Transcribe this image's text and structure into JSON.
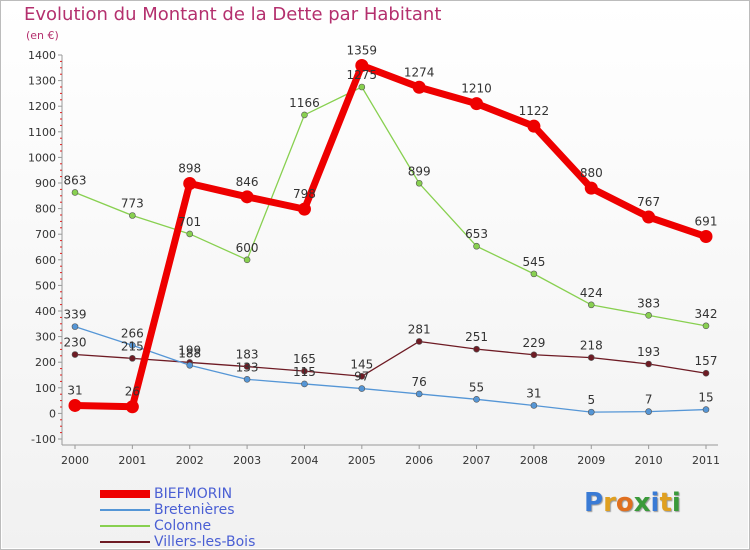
{
  "title": "Evolution du Montant de la Dette par Habitant",
  "subtitle": "(en €)",
  "logo": {
    "text": "Proxiti",
    "letters": [
      {
        "char": "P",
        "color": "#3a7bd5"
      },
      {
        "char": "r",
        "color": "#e0a020"
      },
      {
        "char": "o",
        "color": "#e07020"
      },
      {
        "char": "x",
        "color": "#3a9a3a"
      },
      {
        "char": "i",
        "color": "#3a7bd5"
      },
      {
        "char": "t",
        "color": "#e0a020"
      },
      {
        "char": "i",
        "color": "#3a9a3a"
      }
    ]
  },
  "chart_data": {
    "type": "line",
    "x": [
      "2000",
      "2001",
      "2002",
      "2003",
      "2004",
      "2005",
      "2006",
      "2007",
      "2008",
      "2009",
      "2010",
      "2011"
    ],
    "ylim": [
      -100,
      1400
    ],
    "yticks": [
      -100,
      0,
      100,
      200,
      300,
      400,
      500,
      600,
      700,
      800,
      900,
      1000,
      1100,
      1200,
      1300,
      1400
    ],
    "grid": false,
    "legend_position": "bottom-left",
    "series": [
      {
        "name": "Villers-les-Bois",
        "color": "#6e1b24",
        "emphasis": false,
        "values": [
          230,
          215,
          199,
          183,
          165,
          145,
          281,
          251,
          229,
          218,
          193,
          157
        ],
        "labels": [
          "230",
          "215",
          "199",
          "183",
          "165",
          "145",
          "281",
          "251",
          "229",
          "218",
          "193",
          "157"
        ]
      },
      {
        "name": "Bretenières",
        "color": "#5596d6",
        "emphasis": false,
        "values": [
          339,
          266,
          188,
          133,
          115,
          97,
          76,
          55,
          31,
          5,
          7,
          15
        ],
        "labels": [
          "339",
          "266",
          "188",
          "133",
          "115",
          "97",
          "76",
          "55",
          "31",
          "5",
          "7",
          "15"
        ]
      },
      {
        "name": "Colonne",
        "color": "#88d050",
        "emphasis": false,
        "values": [
          863,
          773,
          701,
          600,
          1166,
          1275,
          899,
          653,
          545,
          424,
          383,
          342
        ],
        "labels": [
          "863",
          "773",
          "701",
          "600",
          "1166",
          "1275",
          "899",
          "653",
          "545",
          "424",
          "383",
          "342"
        ]
      },
      {
        "name": "BIEFMORIN",
        "color": "#ee0000",
        "emphasis": true,
        "values": [
          31,
          26,
          898,
          846,
          798,
          1359,
          1274,
          1210,
          1122,
          880,
          767,
          691
        ],
        "labels": [
          "31",
          "26",
          "898",
          "846",
          "798",
          "1359",
          "1274",
          "1210",
          "1122",
          "880",
          "767",
          "691"
        ]
      }
    ],
    "legend_order": [
      "BIEFMORIN",
      "Bretenières",
      "Colonne",
      "Villers-les-Bois"
    ]
  }
}
